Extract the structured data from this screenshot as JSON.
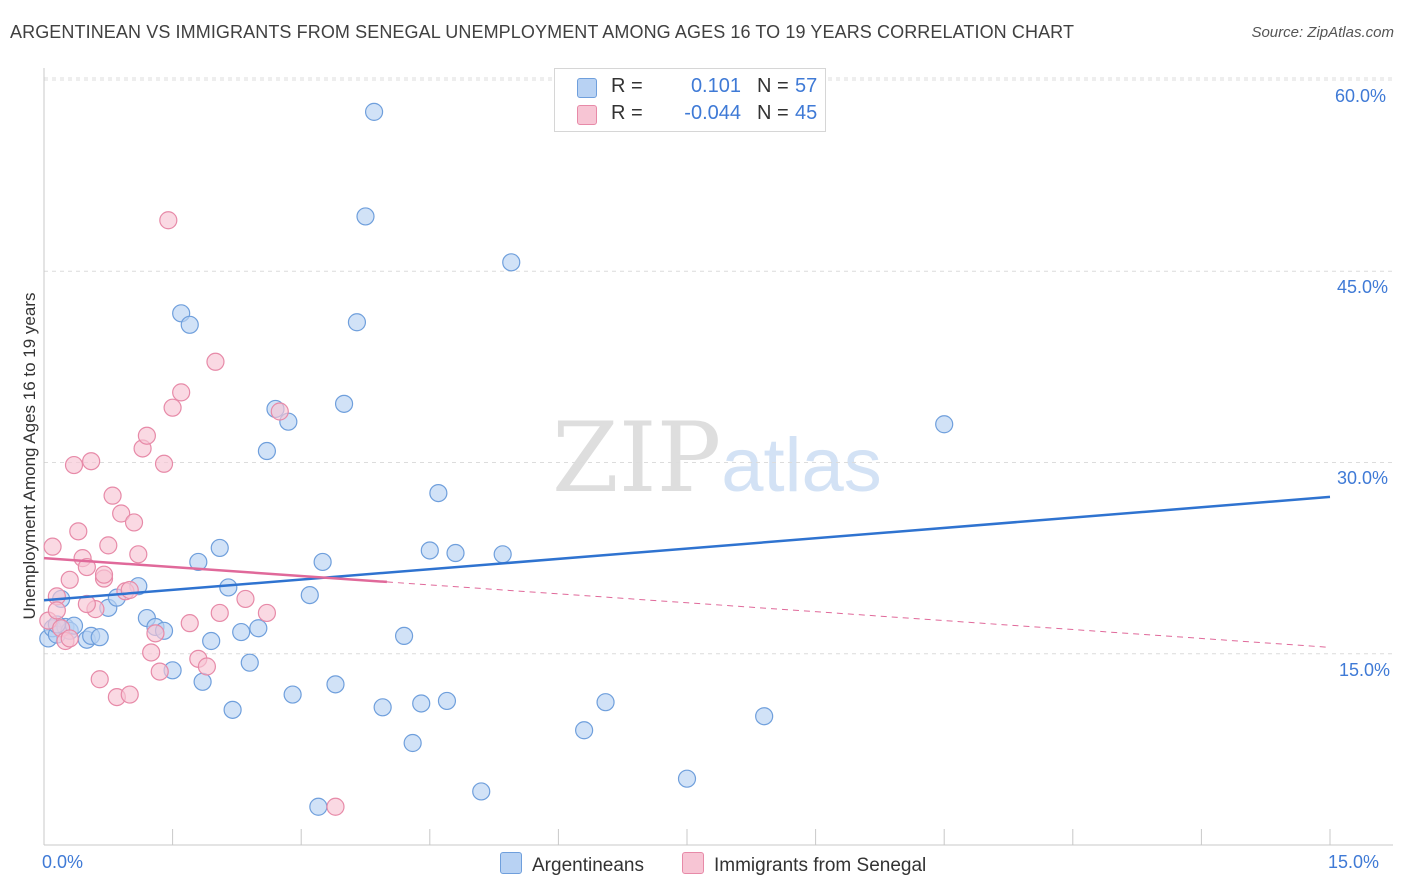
{
  "title": "ARGENTINEAN VS IMMIGRANTS FROM SENEGAL UNEMPLOYMENT AMONG AGES 16 TO 19 YEARS CORRELATION CHART",
  "source": "Source: ZipAtlas.com",
  "watermark": {
    "zip": "ZIP",
    "atlas": "atlas"
  },
  "legend": {
    "series1": {
      "r_label": "R =",
      "r_value": "0.101",
      "n_label": "N =",
      "n_value": "57"
    },
    "series2": {
      "r_label": "R =",
      "r_value": "-0.044",
      "n_label": "N =",
      "n_value": "45"
    }
  },
  "colors": {
    "series1_fill": "#b8d2f3",
    "series1_stroke": "#6f9fdc",
    "series1_line": "#2f73d0",
    "series2_fill": "#f7c5d4",
    "series2_stroke": "#e78aa8",
    "series2_line": "#e0699a",
    "accent_text": "#3f7ad6"
  },
  "chart_data": {
    "type": "scatter",
    "title": "ARGENTINEAN VS IMMIGRANTS FROM SENEGAL UNEMPLOYMENT AMONG AGES 16 TO 19 YEARS CORRELATION CHART",
    "xlabel": "",
    "ylabel": "Unemployment Among Ages 16 to 19 years",
    "xlim": [
      0,
      15
    ],
    "ylim": [
      0,
      60
    ],
    "x_tick_labels": [
      "0.0%",
      "15.0%"
    ],
    "y_tick_labels": [
      "15.0%",
      "30.0%",
      "45.0%",
      "60.0%"
    ],
    "y_ticks": [
      15,
      30,
      45,
      60
    ],
    "series": [
      {
        "name": "Argentineans",
        "r": 0.101,
        "n": 57,
        "trend": {
          "x": [
            0,
            15
          ],
          "y": [
            19.2,
            27.3
          ],
          "dashed_from": null
        },
        "points": [
          [
            0.05,
            16.2
          ],
          [
            0.1,
            17.0
          ],
          [
            0.15,
            16.5
          ],
          [
            0.2,
            19.3
          ],
          [
            0.25,
            17.1
          ],
          [
            0.3,
            16.8
          ],
          [
            0.35,
            17.2
          ],
          [
            0.5,
            16.1
          ],
          [
            0.55,
            16.4
          ],
          [
            0.65,
            16.3
          ],
          [
            0.75,
            18.6
          ],
          [
            0.85,
            19.4
          ],
          [
            1.1,
            20.3
          ],
          [
            1.2,
            17.8
          ],
          [
            1.3,
            17.1
          ],
          [
            1.4,
            16.8
          ],
          [
            1.5,
            13.7
          ],
          [
            1.6,
            41.7
          ],
          [
            1.7,
            40.8
          ],
          [
            1.8,
            22.2
          ],
          [
            1.85,
            12.8
          ],
          [
            1.95,
            16.0
          ],
          [
            2.05,
            23.3
          ],
          [
            2.15,
            20.2
          ],
          [
            2.2,
            10.6
          ],
          [
            2.3,
            16.7
          ],
          [
            2.4,
            14.3
          ],
          [
            2.5,
            17.0
          ],
          [
            2.6,
            30.9
          ],
          [
            2.7,
            34.2
          ],
          [
            2.85,
            33.2
          ],
          [
            2.9,
            11.8
          ],
          [
            3.1,
            19.6
          ],
          [
            3.2,
            3.0
          ],
          [
            3.25,
            22.2
          ],
          [
            3.4,
            12.6
          ],
          [
            3.5,
            34.6
          ],
          [
            3.65,
            41.0
          ],
          [
            3.75,
            49.3
          ],
          [
            3.85,
            57.5
          ],
          [
            3.95,
            10.8
          ],
          [
            4.2,
            16.4
          ],
          [
            4.3,
            8.0
          ],
          [
            4.4,
            11.1
          ],
          [
            4.5,
            23.1
          ],
          [
            4.6,
            27.6
          ],
          [
            4.7,
            11.3
          ],
          [
            4.8,
            22.9
          ],
          [
            5.1,
            4.2
          ],
          [
            5.35,
            22.8
          ],
          [
            5.45,
            45.7
          ],
          [
            6.3,
            9.0
          ],
          [
            6.55,
            11.2
          ],
          [
            7.5,
            5.2
          ],
          [
            8.4,
            10.1
          ],
          [
            10.5,
            33.0
          ],
          [
            0.15,
            17.3
          ]
        ]
      },
      {
        "name": "Immigrants from Senegal",
        "r": -0.044,
        "n": 45,
        "trend": {
          "x": [
            0,
            15
          ],
          "y": [
            22.5,
            15.5
          ],
          "solid_until_x": 4.0
        },
        "points": [
          [
            0.05,
            17.6
          ],
          [
            0.1,
            23.4
          ],
          [
            0.15,
            19.5
          ],
          [
            0.2,
            17.0
          ],
          [
            0.3,
            20.8
          ],
          [
            0.35,
            29.8
          ],
          [
            0.4,
            24.6
          ],
          [
            0.45,
            22.5
          ],
          [
            0.5,
            21.8
          ],
          [
            0.55,
            30.1
          ],
          [
            0.6,
            18.5
          ],
          [
            0.65,
            13.0
          ],
          [
            0.7,
            20.9
          ],
          [
            0.75,
            23.5
          ],
          [
            0.8,
            27.4
          ],
          [
            0.85,
            11.6
          ],
          [
            0.9,
            26.0
          ],
          [
            0.95,
            19.9
          ],
          [
            1.0,
            11.8
          ],
          [
            1.05,
            25.3
          ],
          [
            1.1,
            22.8
          ],
          [
            1.15,
            31.1
          ],
          [
            1.2,
            32.1
          ],
          [
            1.25,
            15.1
          ],
          [
            1.3,
            16.6
          ],
          [
            1.35,
            13.6
          ],
          [
            1.4,
            29.9
          ],
          [
            1.45,
            49.0
          ],
          [
            1.5,
            34.3
          ],
          [
            1.6,
            35.5
          ],
          [
            1.7,
            17.4
          ],
          [
            1.8,
            14.6
          ],
          [
            1.9,
            14.0
          ],
          [
            2.0,
            37.9
          ],
          [
            2.05,
            18.2
          ],
          [
            2.35,
            19.3
          ],
          [
            2.6,
            18.2
          ],
          [
            2.75,
            34.0
          ],
          [
            3.4,
            3.0
          ],
          [
            0.25,
            16.0
          ],
          [
            0.15,
            18.4
          ],
          [
            1.0,
            20.0
          ],
          [
            0.5,
            18.9
          ],
          [
            0.7,
            21.2
          ],
          [
            0.3,
            16.2
          ]
        ]
      }
    ],
    "legend_position": "bottom"
  }
}
